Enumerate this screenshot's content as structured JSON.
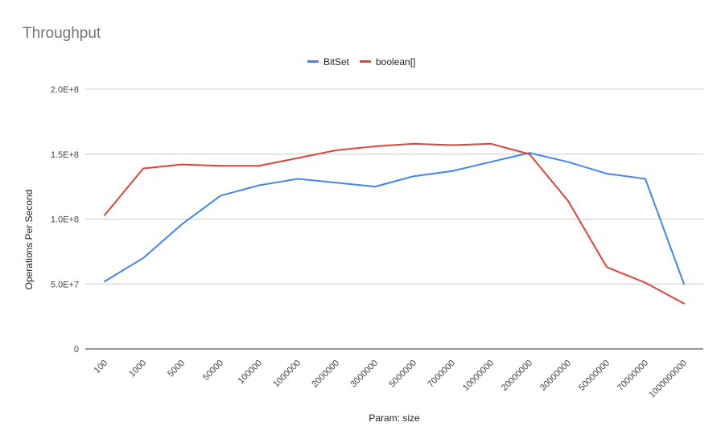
{
  "chart_data": {
    "type": "line",
    "title": "Throughput",
    "xlabel": "Param: size",
    "ylabel": "Operations Per Second",
    "categories": [
      "100",
      "1000",
      "5000",
      "50000",
      "100000",
      "1000000",
      "2000000",
      "3000000",
      "5000000",
      "7000000",
      "10000000",
      "20000000",
      "30000000",
      "50000000",
      "70000000",
      "1000000000"
    ],
    "ylim": [
      0,
      200000000
    ],
    "yticks": [
      {
        "value": 0,
        "label": "0"
      },
      {
        "value": 50000000,
        "label": "5.0E+7"
      },
      {
        "value": 100000000,
        "label": "1.0E+8"
      },
      {
        "value": 150000000,
        "label": "1.5E+8"
      },
      {
        "value": 200000000,
        "label": "2.0E+8"
      }
    ],
    "grid": true,
    "legend_position": "top",
    "series": [
      {
        "name": "BitSet",
        "color": "#4285f4",
        "values": [
          52000000,
          70000000,
          96000000,
          118000000,
          126000000,
          131000000,
          128000000,
          125000000,
          133000000,
          137000000,
          144000000,
          151000000,
          144000000,
          135000000,
          131000000,
          50000000
        ]
      },
      {
        "name": "boolean[]",
        "color": "#db4437",
        "values": [
          103000000,
          139000000,
          142000000,
          141000000,
          141000000,
          147000000,
          153000000,
          156000000,
          158000000,
          157000000,
          158000000,
          150000000,
          114000000,
          63000000,
          51000000,
          35000000
        ]
      }
    ]
  }
}
